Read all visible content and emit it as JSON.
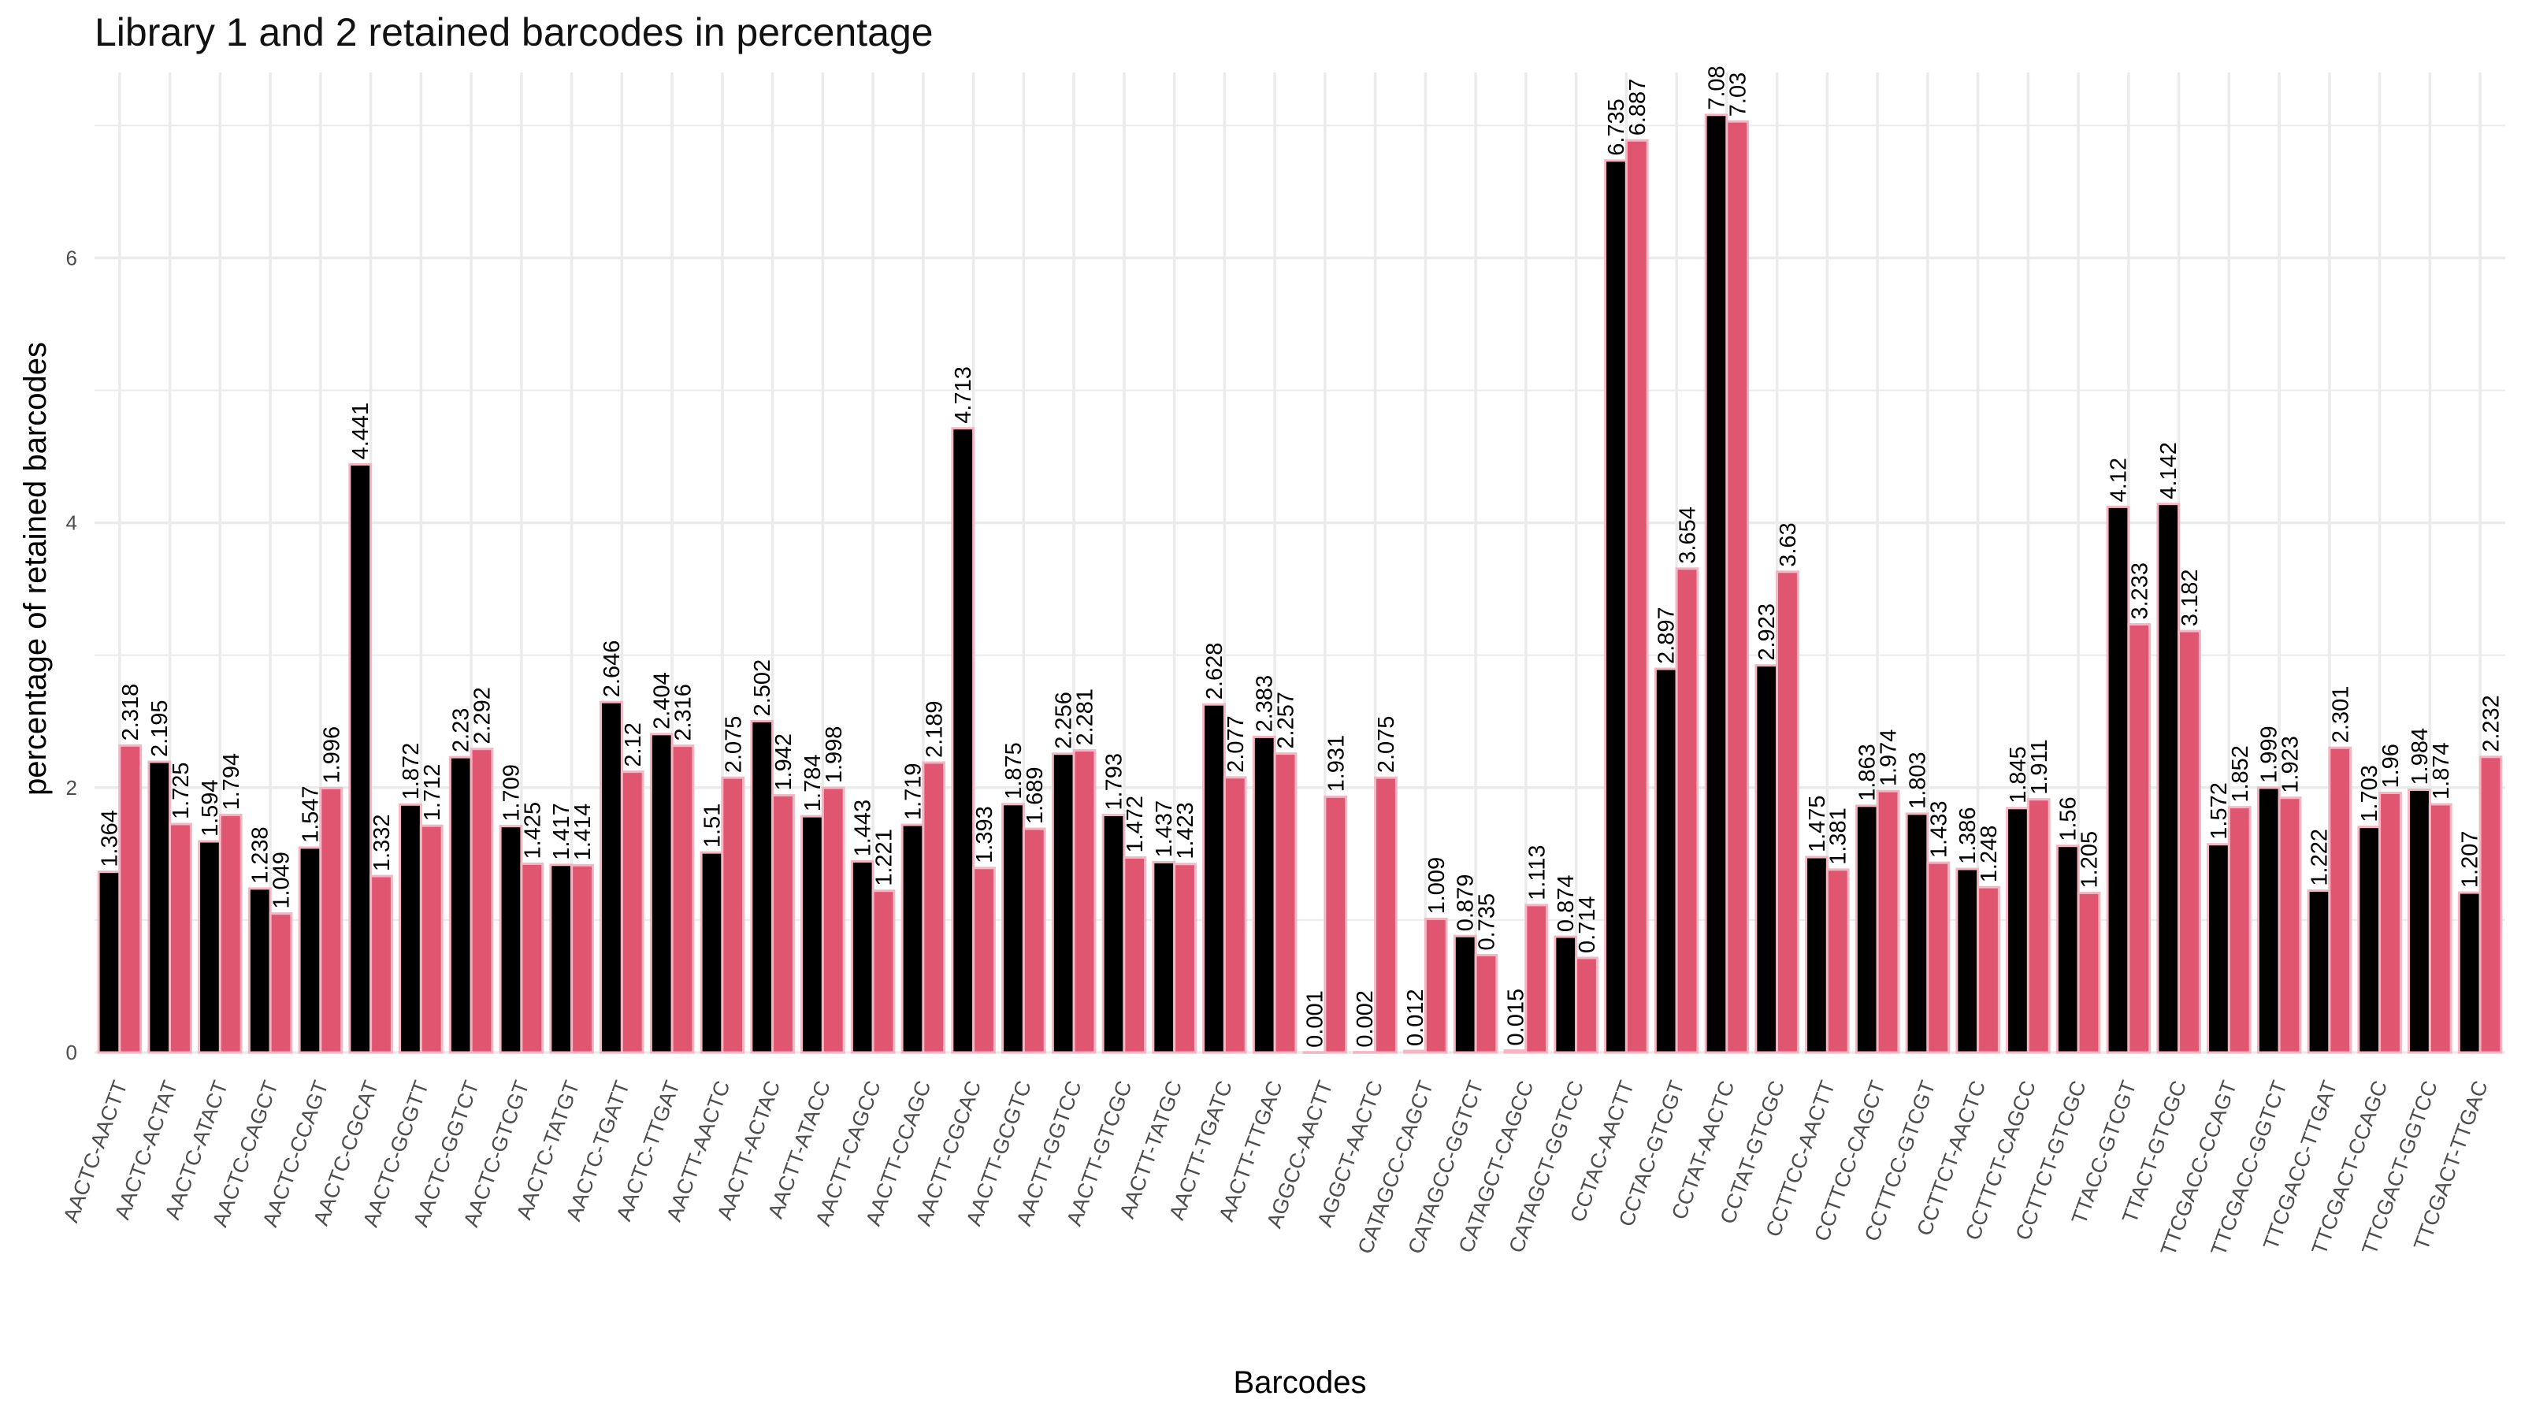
{
  "chart_data": {
    "type": "bar",
    "title": "Library 1 and 2 retained barcodes in percentage",
    "xlabel": "Barcodes",
    "ylabel": "percentage of retained barcodes",
    "ylim": [
      0,
      7.4
    ],
    "y_ticks": [
      0,
      2,
      4,
      6
    ],
    "grid": true,
    "legend": "none",
    "categories": [
      "AACTC-AACTT",
      "AACTC-ACTAT",
      "AACTC-ATACT",
      "AACTC-CAGCT",
      "AACTC-CCAGT",
      "AACTC-CGCAT",
      "AACTC-GCGTT",
      "AACTC-GGTCT",
      "AACTC-GTCGT",
      "AACTC-TATGT",
      "AACTC-TGATT",
      "AACTC-TTGAT",
      "AACTT-AACTC",
      "AACTT-ACTAC",
      "AACTT-ATACC",
      "AACTT-CAGCC",
      "AACTT-CCAGC",
      "AACTT-CGCAC",
      "AACTT-GCGTC",
      "AACTT-GGTCC",
      "AACTT-GTCGC",
      "AACTT-TATGC",
      "AACTT-TGATC",
      "AACTT-TTGAC",
      "AGGCC-AACTT",
      "AGGCT-AACTC",
      "CATAGCC-CAGCT",
      "CATAGCC-GGTCT",
      "CATAGCT-CAGCC",
      "CATAGCT-GGTCC",
      "CCTAC-AACTT",
      "CCTAC-GTCGT",
      "CCTAT-AACTC",
      "CCTAT-GTCGC",
      "CCTTCC-AACTT",
      "CCTTCC-CAGCT",
      "CCTTCC-GTCGT",
      "CCTTCT-AACTC",
      "CCTTCT-CAGCC",
      "CCTTCT-GTCGC",
      "TTACC-GTCGT",
      "TTACT-GTCGC",
      "TTCGACC-CCAGT",
      "TTCGACC-GGTCT",
      "TTCGACC-TTGAT",
      "TTCGACT-CCAGC",
      "TTCGACT-GGTCC",
      "TTCGACT-TTGAC"
    ],
    "series": [
      {
        "color": "#000000",
        "values": [
          1.364,
          2.195,
          1.594,
          1.238,
          1.547,
          4.441,
          1.872,
          2.23,
          1.709,
          1.417,
          2.646,
          2.404,
          1.51,
          2.502,
          1.784,
          1.443,
          1.719,
          4.713,
          1.875,
          2.256,
          1.793,
          1.437,
          2.628,
          2.383,
          0.001,
          0.002,
          0.012,
          0.879,
          0.015,
          0.874,
          6.735,
          2.897,
          7.08,
          2.923,
          1.475,
          1.863,
          1.803,
          1.386,
          1.845,
          1.56,
          4.12,
          4.142,
          1.572,
          1.999,
          1.222,
          1.703,
          1.984,
          1.207
        ],
        "labels": [
          "1.364",
          "2.195",
          "1.594",
          "1.238",
          "1.547",
          "4.441",
          "1.872",
          "2.23",
          "1.709",
          "1.417",
          "2.646",
          "2.404",
          "1.51",
          "2.502",
          "1.784",
          "1.443",
          "1.719",
          "4.713",
          "1.875",
          "2.256",
          "1.793",
          "1.437",
          "2.628",
          "2.383",
          "0.001",
          "0.002",
          "0.012",
          "0.879",
          "0.015",
          "0.874",
          "6.735",
          "2.897",
          "7.08",
          "2.923",
          "1.475",
          "1.863",
          "1.803",
          "1.386",
          "1.845",
          "1.56",
          "4.12",
          "4.142",
          "1.572",
          "1.999",
          "1.222",
          "1.703",
          "1.984",
          "1.207"
        ]
      },
      {
        "color": "#e05570",
        "values": [
          2.318,
          1.725,
          1.794,
          1.049,
          1.996,
          1.332,
          1.712,
          2.292,
          1.425,
          1.414,
          2.12,
          2.316,
          2.075,
          1.942,
          1.998,
          1.221,
          2.189,
          1.393,
          1.689,
          2.281,
          1.472,
          1.423,
          2.077,
          2.257,
          1.931,
          2.075,
          1.009,
          0.735,
          1.113,
          0.714,
          6.887,
          3.654,
          7.03,
          3.63,
          1.381,
          1.974,
          1.433,
          1.248,
          1.911,
          1.205,
          3.233,
          3.182,
          1.852,
          1.923,
          2.301,
          1.96,
          1.874,
          2.232
        ],
        "labels": [
          "2.318",
          "1.725",
          "1.794",
          "1.049",
          "1.996",
          "1.332",
          "1.712",
          "2.292",
          "1.425",
          "1.414",
          "2.12",
          "2.316",
          "2.075",
          "1.942",
          "1.998",
          "1.221",
          "2.189",
          "1.393",
          "1.689",
          "2.281",
          "1.472",
          "1.423",
          "2.077",
          "2.257",
          "1.931",
          "2.075",
          "1.009",
          "0.735",
          "1.113",
          "0.714",
          "6.887",
          "3.654",
          "7.03",
          "3.63",
          "1.381",
          "1.974",
          "1.433",
          "1.248",
          "1.911",
          "1.205",
          "3.233",
          "3.182",
          "1.852",
          "1.923",
          "2.301",
          "1.96",
          "1.874",
          "2.232"
        ]
      }
    ],
    "colors": {
      "bar_outline": "#f4b6c2",
      "grid": "#ebebeb",
      "background": "#ffffff"
    }
  }
}
